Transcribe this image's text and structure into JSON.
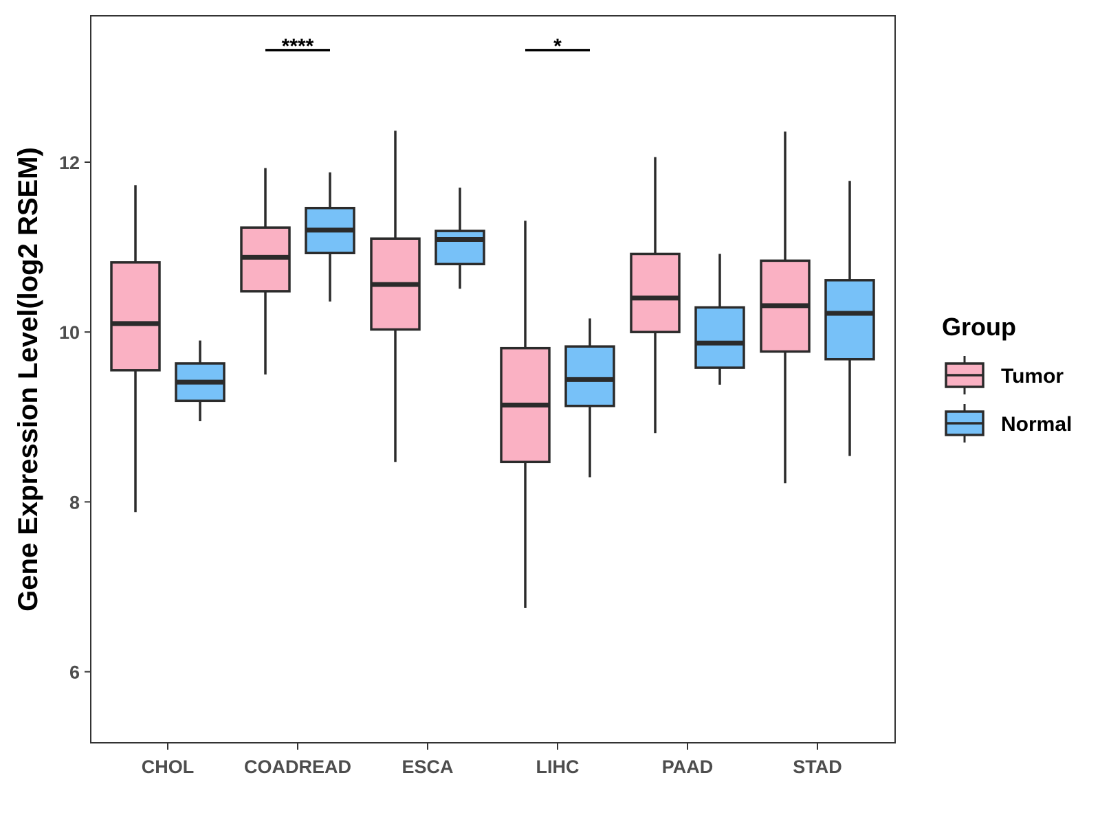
{
  "chart_data": {
    "type": "boxplot",
    "title": "",
    "xlabel": "",
    "ylabel": "Gene Expression Level(log2 RSEM)",
    "ylim": [
      5.2,
      13.5
    ],
    "yticks": [
      6,
      8,
      10,
      12
    ],
    "grid": false,
    "legend": {
      "title": "Group",
      "position": "right",
      "entries": [
        {
          "name": "Tumor",
          "color": "#FAB1C3"
        },
        {
          "name": "Normal",
          "color": "#77C1F8"
        }
      ]
    },
    "categories": [
      "CHOL",
      "COADREAD",
      "ESCA",
      "LIHC",
      "PAAD",
      "STAD"
    ],
    "series": [
      {
        "name": "Tumor",
        "color": "#FAB1C3",
        "boxes": [
          {
            "min": 7.88,
            "q1": 9.55,
            "median": 10.1,
            "q3": 10.82,
            "max": 11.73
          },
          {
            "min": 9.5,
            "q1": 10.48,
            "median": 10.88,
            "q3": 11.23,
            "max": 11.93
          },
          {
            "min": 8.47,
            "q1": 10.03,
            "median": 10.56,
            "q3": 11.1,
            "max": 12.37
          },
          {
            "min": 6.75,
            "q1": 8.47,
            "median": 9.14,
            "q3": 9.81,
            "max": 11.31
          },
          {
            "min": 8.81,
            "q1": 10.0,
            "median": 10.4,
            "q3": 10.92,
            "max": 12.06
          },
          {
            "min": 8.22,
            "q1": 9.77,
            "median": 10.31,
            "q3": 10.84,
            "max": 12.36
          }
        ]
      },
      {
        "name": "Normal",
        "color": "#77C1F8",
        "boxes": [
          {
            "min": 8.95,
            "q1": 9.19,
            "median": 9.41,
            "q3": 9.63,
            "max": 9.9
          },
          {
            "min": 10.36,
            "q1": 10.93,
            "median": 11.2,
            "q3": 11.46,
            "max": 11.88
          },
          {
            "min": 10.51,
            "q1": 10.8,
            "median": 11.09,
            "q3": 11.19,
            "max": 11.7
          },
          {
            "min": 8.29,
            "q1": 9.13,
            "median": 9.44,
            "q3": 9.83,
            "max": 10.16
          },
          {
            "min": 9.38,
            "q1": 9.58,
            "median": 9.87,
            "q3": 10.29,
            "max": 10.92
          },
          {
            "min": 8.54,
            "q1": 9.68,
            "median": 10.22,
            "q3": 10.61,
            "max": 11.78
          }
        ]
      }
    ],
    "annotations": [
      {
        "category": "COADREAD",
        "label": "****",
        "y": 13.32
      },
      {
        "category": "LIHC",
        "label": "*",
        "y": 13.32
      }
    ]
  }
}
